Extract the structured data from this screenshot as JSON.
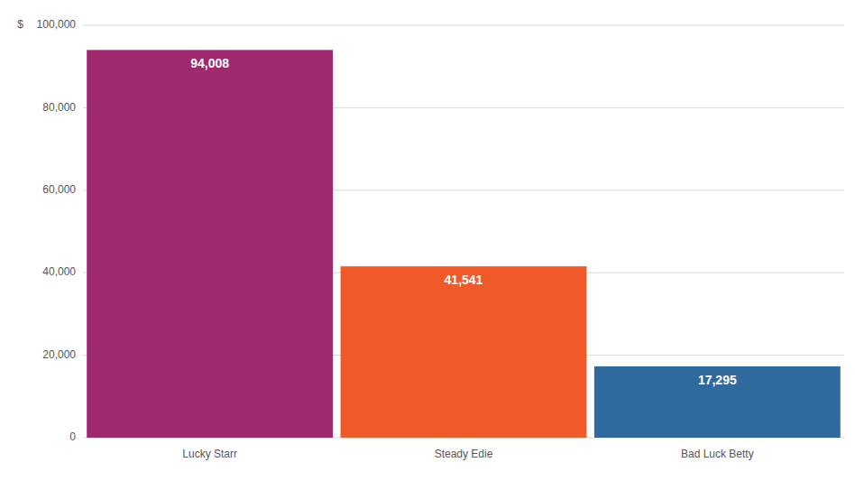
{
  "chart_data": {
    "type": "bar",
    "ylabel": "$",
    "categories": [
      "Lucky Starr",
      "Steady Edie",
      "Bad Luck Betty"
    ],
    "values": [
      94008,
      41541,
      17295
    ],
    "value_labels": [
      "94,008",
      "41,541",
      "17,295"
    ],
    "data_labels": true,
    "colors": [
      "#A0286E",
      "#F05A28",
      "#2E6A9E"
    ],
    "ylim": [
      0,
      100000
    ],
    "yticks": [
      0,
      {
        "value": 20000,
        "label": "20,000"
      },
      {
        "value": 40000,
        "label": "40,000"
      },
      {
        "value": 60000,
        "label": "60,000"
      },
      {
        "value": 80000,
        "label": "80,000"
      },
      {
        "value": 100000,
        "label": "100,000"
      }
    ],
    "grid": true
  }
}
